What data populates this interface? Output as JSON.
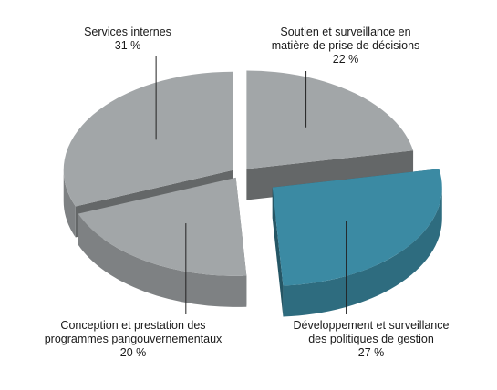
{
  "chart_data": {
    "type": "pie",
    "style": "3d-exploded",
    "slices": [
      {
        "label_lines": [
          "Soutien et surveillance en",
          "matière de prise de décisions"
        ],
        "value_text": "22 %",
        "value": 22,
        "color": "#a2a6a8",
        "exploded": false
      },
      {
        "label_lines": [
          "Développement et surveillance",
          "des politiques de gestion"
        ],
        "value_text": "27 %",
        "value": 27,
        "color": "#3b8aa3",
        "exploded": true
      },
      {
        "label_lines": [
          "Conception et prestation des",
          "programmes pangouvernementaux"
        ],
        "value_text": "20 %",
        "value": 20,
        "color": "#a2a6a8",
        "exploded": false
      },
      {
        "label_lines": [
          "Services internes"
        ],
        "value_text": "31 %",
        "value": 31,
        "color": "#a2a6a8",
        "exploded": false
      }
    ]
  }
}
